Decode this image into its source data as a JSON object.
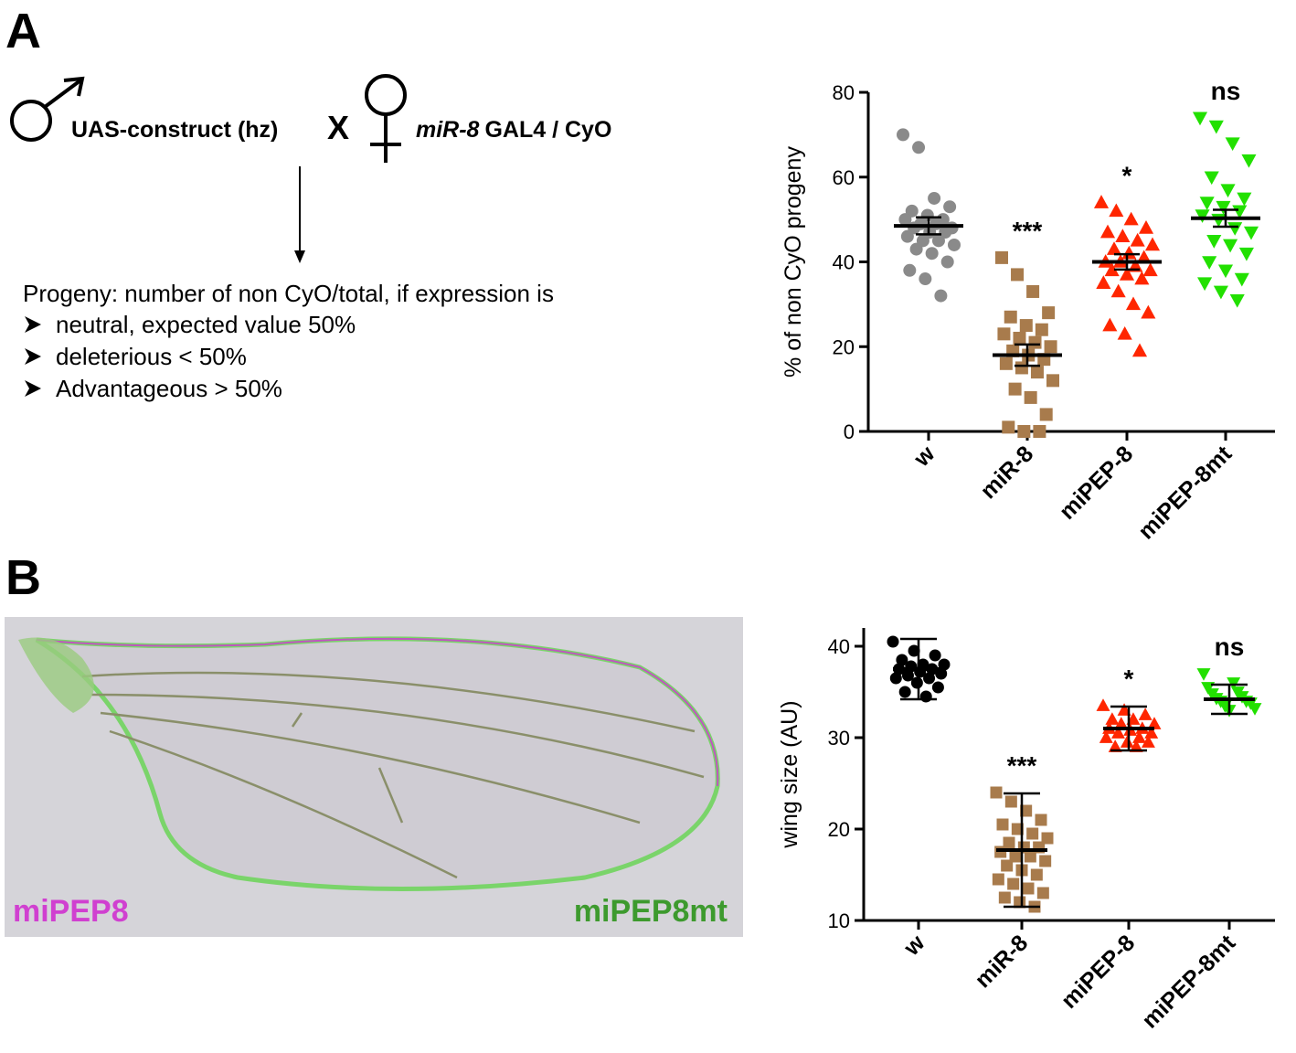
{
  "panels": [
    "A",
    "B"
  ],
  "cross": {
    "construct": "UAS-construct (hz)",
    "times": "X",
    "female_genotype_italic": "miR-8",
    "female_genotype": "GAL4 / CyO"
  },
  "progeny": {
    "heading": "Progeny: number of non CyO/total, if expression is",
    "items": [
      "neutral, expected value 50%",
      "deleterious < 50%",
      "Advantageous > 50%"
    ]
  },
  "wing_image": {
    "label_left": "miPEP8",
    "label_right": "miPEP8mt"
  },
  "chart_data": [
    {
      "type": "dotplot",
      "ylabel": "% of non CyO progeny",
      "categories": [
        "w",
        "miR-8",
        "miPEP-8",
        "miPEP-8mt"
      ],
      "colors": [
        "#8a8a8a",
        "#a87b4c",
        "#ff2600",
        "#22e000"
      ],
      "markers": [
        "circle",
        "square",
        "triangle",
        "triangle-down"
      ],
      "points": [
        [
          70,
          67,
          55,
          53,
          52,
          51,
          50,
          50,
          49,
          49,
          48,
          48,
          47,
          47,
          46,
          45,
          45,
          44,
          43,
          42,
          40,
          38,
          36,
          32
        ],
        [
          41,
          37,
          33,
          28,
          27,
          25,
          24,
          23,
          22,
          21,
          20,
          19,
          18,
          17,
          16,
          15,
          14,
          12,
          10,
          8,
          4,
          1,
          0,
          0
        ],
        [
          54,
          52,
          50,
          48,
          47,
          46,
          45,
          44,
          43,
          42,
          41,
          40,
          40,
          39,
          38,
          38,
          37,
          36,
          35,
          33,
          30,
          28,
          25,
          23,
          19
        ],
        [
          74,
          72,
          68,
          64,
          60,
          57,
          55,
          54,
          53,
          52,
          51,
          50,
          48,
          47,
          45,
          44,
          42,
          40,
          38,
          36,
          35,
          33,
          31
        ]
      ],
      "means": [
        48.5,
        18,
        40,
        50.3
      ],
      "errors": [
        2,
        2.5,
        1.8,
        2
      ],
      "annotations": [
        null,
        "***",
        "*",
        "ns"
      ],
      "ylim": [
        0,
        80
      ],
      "yticks": [
        0,
        20,
        40,
        60,
        80
      ]
    },
    {
      "type": "dotplot",
      "ylabel": "wing size (AU)",
      "categories": [
        "w",
        "miR-8",
        "miPEP-8",
        "miPEP-8mt"
      ],
      "colors": [
        "#000000",
        "#a87b4c",
        "#ff2600",
        "#22e000"
      ],
      "markers": [
        "circle",
        "square",
        "triangle",
        "triangle-down"
      ],
      "points": [
        [
          40.5,
          39.5,
          39,
          38.5,
          38,
          38,
          37.8,
          37.5,
          37.5,
          37.2,
          37,
          36.8,
          36.5,
          36.5,
          36,
          35.5,
          35,
          34.5
        ],
        [
          24,
          23,
          22,
          21,
          20.5,
          20,
          19.5,
          19,
          18.5,
          18,
          18,
          17.5,
          17,
          17,
          16.5,
          16,
          15.5,
          15,
          14.5,
          14,
          13.5,
          13,
          12.5,
          12,
          11.5
        ],
        [
          33.5,
          33,
          32.5,
          32,
          32,
          31.5,
          31.5,
          31,
          31,
          30.8,
          30.5,
          30.5,
          30,
          30,
          29.5,
          29.5,
          29,
          29
        ],
        [
          37,
          36,
          35.5,
          35,
          34.8,
          34.5,
          34.3,
          34,
          34,
          33.8,
          33.5,
          33.2,
          33
        ]
      ],
      "means": [
        37.5,
        17.7,
        31,
        34.2
      ],
      "errors": [
        3.3,
        6.2,
        2.4,
        1.6
      ],
      "annotations": [
        null,
        "***",
        "*",
        "ns"
      ],
      "ylim": [
        10,
        42
      ],
      "yticks": [
        10,
        20,
        30,
        40
      ]
    }
  ]
}
